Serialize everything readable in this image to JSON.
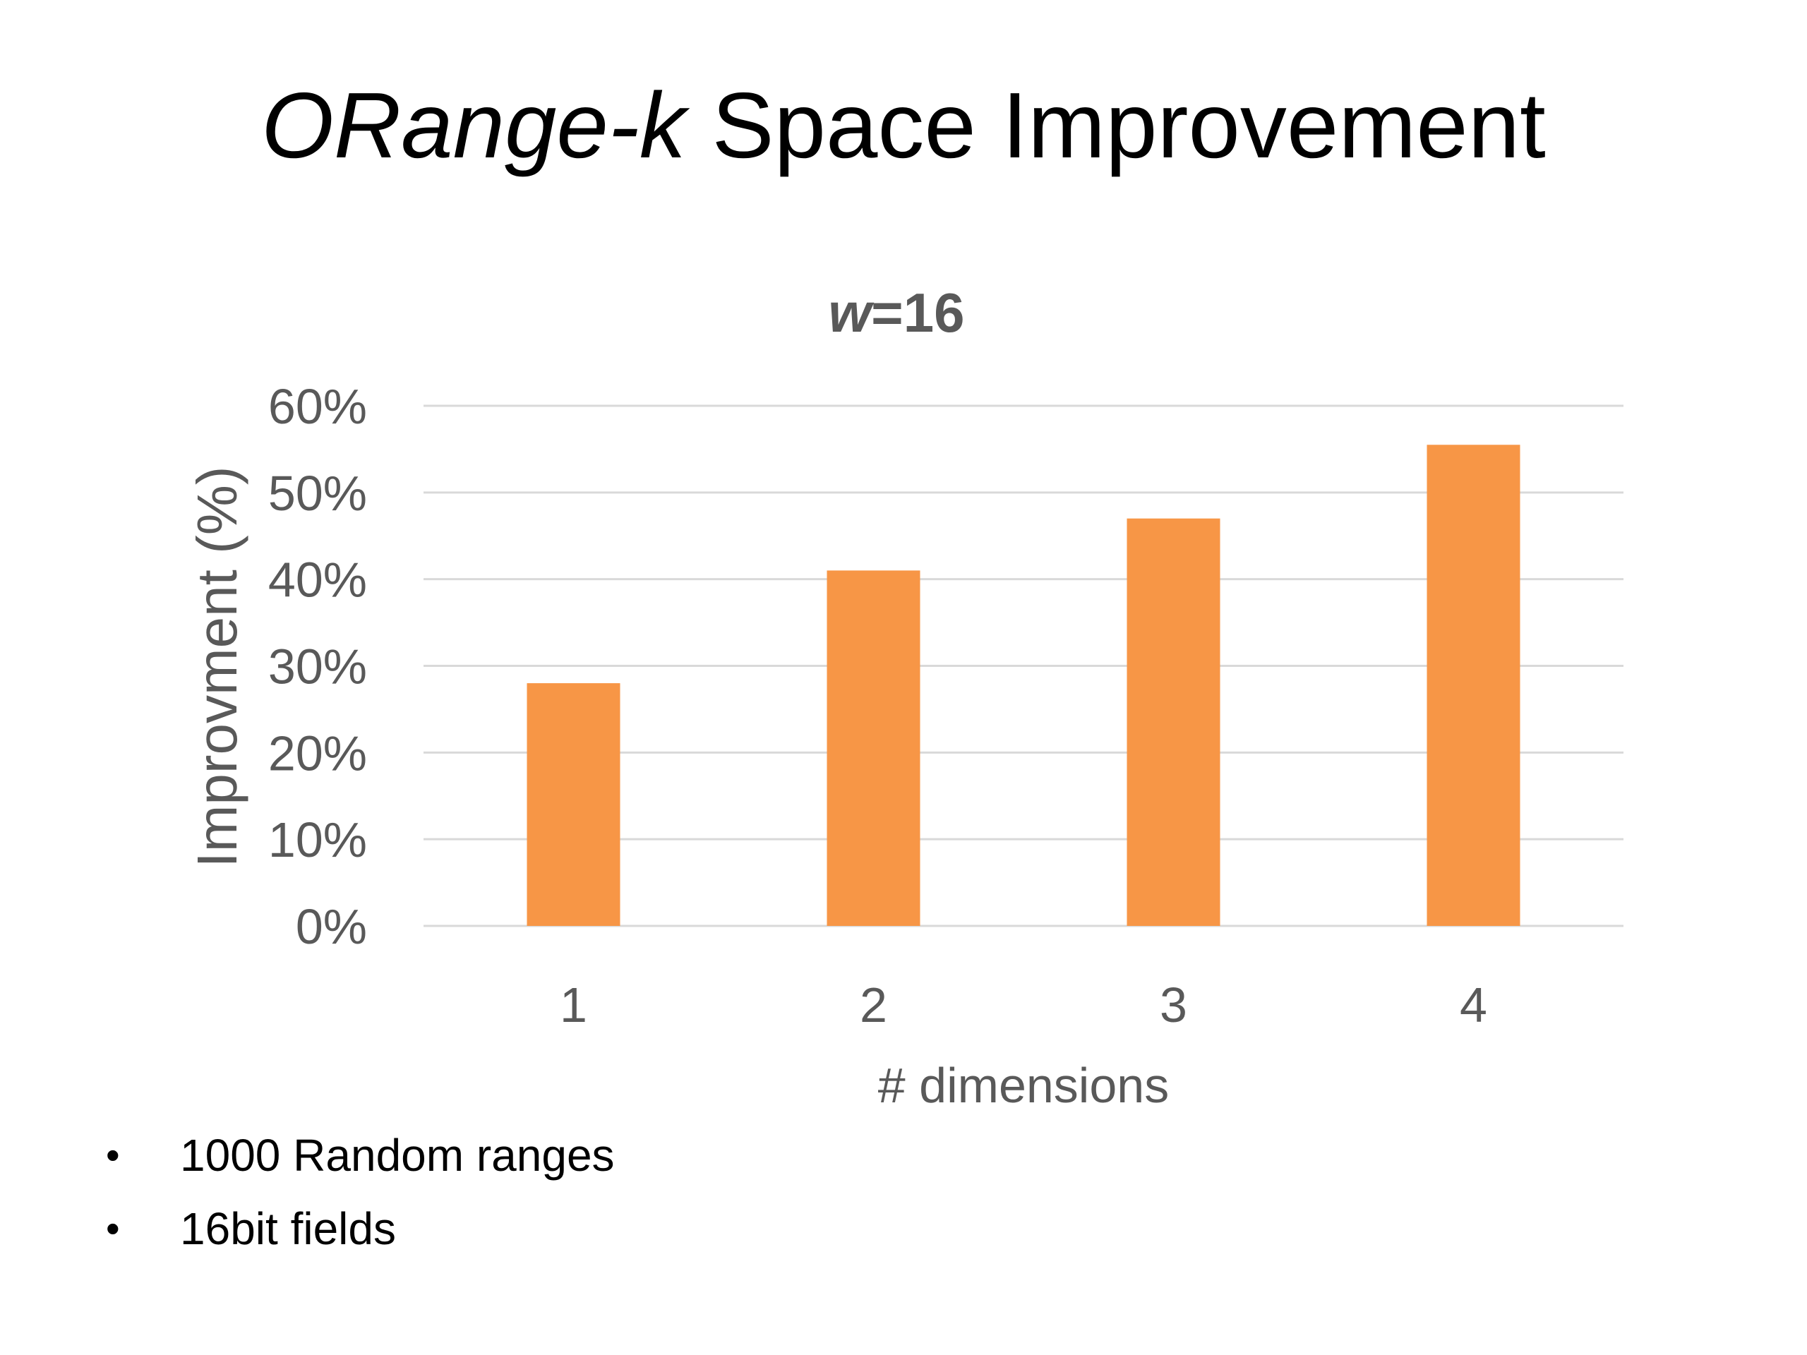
{
  "slide": {
    "title_italic": "ORange-k",
    "title_rest": " Space Improvement",
    "bullet_glyph": "•",
    "bullets": [
      "1000 Random ranges",
      "16bit fields"
    ]
  },
  "chart_data": {
    "type": "bar",
    "title_italic": "w",
    "title_rest": "=16",
    "categories": [
      "1",
      "2",
      "3",
      "4"
    ],
    "values": [
      28,
      41,
      47,
      55.5
    ],
    "xlabel": "# dimensions",
    "ylabel": "Improvment (%)",
    "ylim": [
      0,
      60
    ],
    "yticks": [
      0,
      10,
      20,
      30,
      40,
      50,
      60
    ],
    "ytick_labels": [
      "0%",
      "10%",
      "20%",
      "30%",
      "40%",
      "50%",
      "60%"
    ],
    "grid": true,
    "legend": "none",
    "bar_color": "#F79646",
    "grid_color": "#D9D9D9",
    "text_color": "#595959"
  }
}
